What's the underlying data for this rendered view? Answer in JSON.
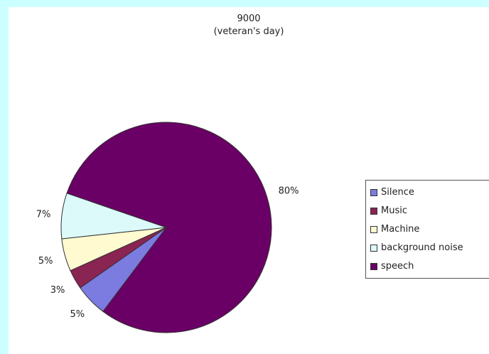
{
  "chart_data": {
    "type": "pie",
    "title": "9000",
    "subtitle": "(veteran's day)",
    "slices": [
      {
        "label": "Silence",
        "value": 5,
        "color": "#7b7be0"
      },
      {
        "label": "Music",
        "value": 3,
        "color": "#8a2452"
      },
      {
        "label": "Machine",
        "value": 5,
        "color": "#fffad0"
      },
      {
        "label": "background noise",
        "value": 7,
        "color": "#dcfafa"
      },
      {
        "label": "speech",
        "value": 80,
        "color": "#6a0066"
      }
    ],
    "data_labels": [
      "5%",
      "3%",
      "5%",
      "7%",
      "80%"
    ],
    "legend": "right"
  }
}
